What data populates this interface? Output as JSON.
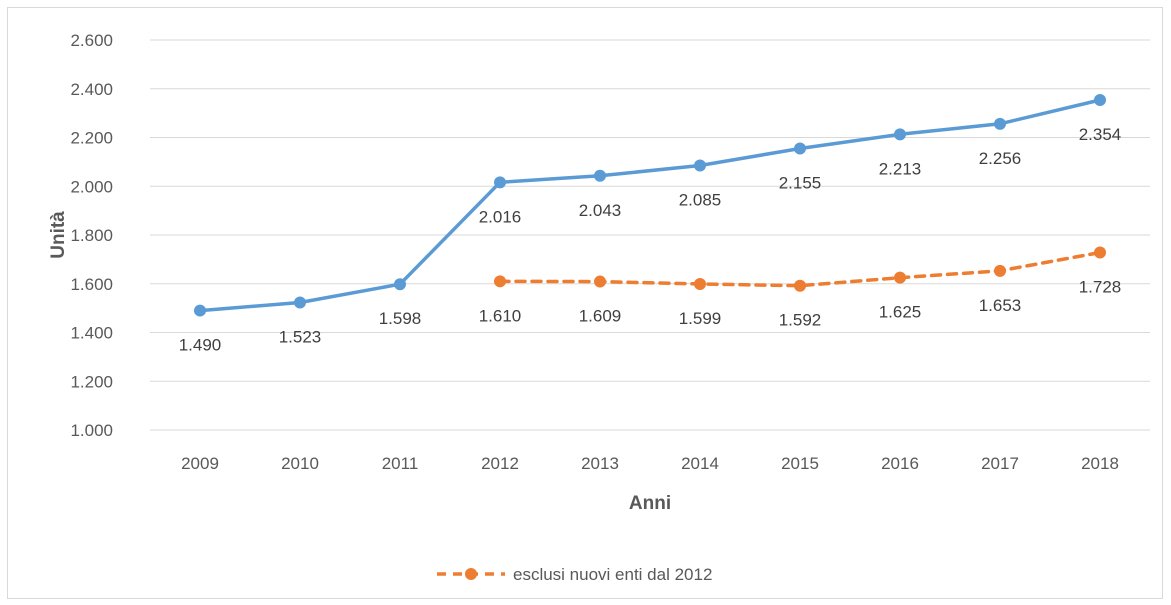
{
  "chart_data": {
    "type": "line",
    "categories": [
      "2009",
      "2010",
      "2011",
      "2012",
      "2013",
      "2014",
      "2015",
      "2016",
      "2017",
      "2018"
    ],
    "xlabel": "Anni",
    "ylabel": "Unità",
    "ylim": [
      1000,
      2600
    ],
    "yticks": [
      1000,
      1200,
      1400,
      1600,
      1800,
      2000,
      2200,
      2400,
      2600
    ],
    "ytick_labels": [
      "1.000",
      "1.200",
      "1.400",
      "1.600",
      "1.800",
      "2.000",
      "2.200",
      "2.400",
      "2.600"
    ],
    "grid": true,
    "legend_position": "bottom",
    "series": [
      {
        "values": [
          1490,
          1523,
          1598,
          2016,
          2043,
          2085,
          2155,
          2213,
          2256,
          2354
        ],
        "labels": [
          "1.490",
          "1.523",
          "1.598",
          "2.016",
          "2.043",
          "2.085",
          "2.155",
          "2.213",
          "2.256",
          "2.354"
        ],
        "color": "#5b9bd5",
        "style": "solid",
        "label_position": "below"
      },
      {
        "name": "esclusi nuovi enti dal 2012",
        "values": [
          null,
          null,
          null,
          1610,
          1609,
          1599,
          1592,
          1625,
          1653,
          1728
        ],
        "labels": [
          null,
          null,
          null,
          "1.610",
          "1.609",
          "1.599",
          "1.592",
          "1.625",
          "1.653",
          "1.728"
        ],
        "color": "#ed7d31",
        "style": "dashed",
        "label_position": "below"
      }
    ]
  }
}
